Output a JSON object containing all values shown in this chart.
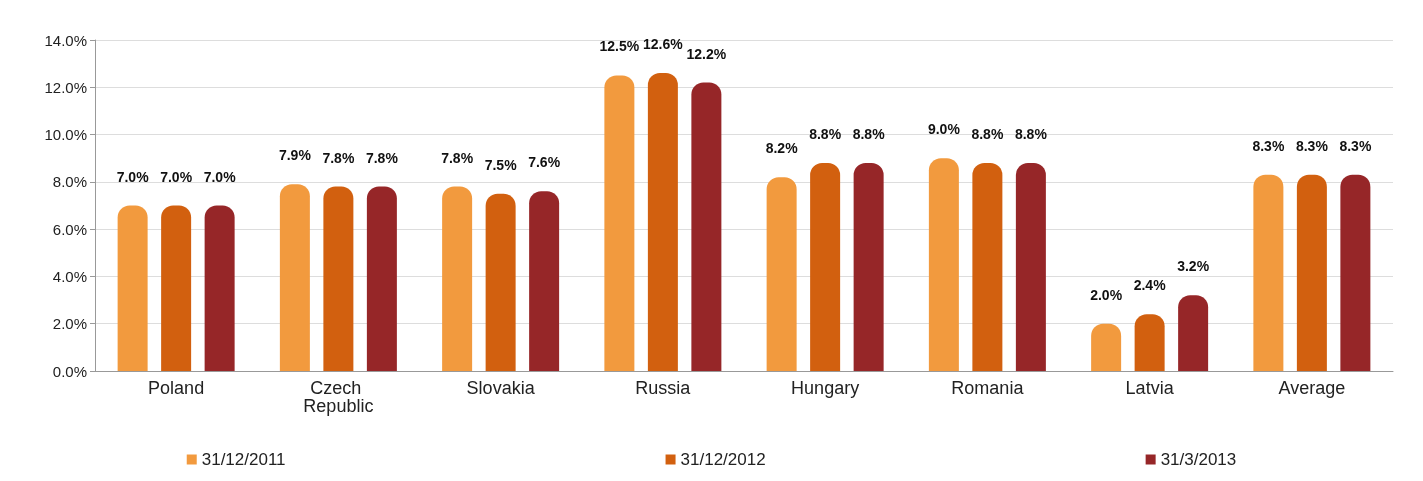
{
  "chart_data": {
    "type": "bar",
    "categories": [
      "Poland",
      "Czech Republic",
      "Slovakia",
      "Russia",
      "Hungary",
      "Romania",
      "Latvia",
      "Average"
    ],
    "series": [
      {
        "name": "31/12/2011",
        "color": "#f29a3e",
        "values": [
          7.0,
          7.9,
          7.8,
          12.5,
          8.2,
          9.0,
          2.0,
          8.3
        ],
        "value_labels": [
          "7.0%",
          "7.9%",
          "7.8%",
          "12.5%",
          "8.2%",
          "9.0%",
          "2.0%",
          "8.3%"
        ]
      },
      {
        "name": "31/12/2012",
        "color": "#d2600f",
        "values": [
          7.0,
          7.8,
          7.5,
          12.6,
          8.8,
          8.8,
          2.4,
          8.3
        ],
        "value_labels": [
          "7.0%",
          "7.8%",
          "7.5%",
          "12.6%",
          "8.8%",
          "8.8%",
          "2.4%",
          "8.3%"
        ]
      },
      {
        "name": "31/3/2013",
        "color": "#962628",
        "values": [
          7.0,
          7.8,
          7.6,
          12.2,
          8.8,
          8.8,
          3.2,
          8.3
        ],
        "value_labels": [
          "7.0%",
          "7.8%",
          "7.6%",
          "12.2%",
          "8.8%",
          "8.8%",
          "3.2%",
          "8.3%"
        ]
      }
    ],
    "ylim": [
      0,
      14
    ],
    "yticks": [
      {
        "value": 0,
        "label": "0.0%"
      },
      {
        "value": 2,
        "label": "2.0%"
      },
      {
        "value": 4,
        "label": "4.0%"
      },
      {
        "value": 6,
        "label": "6.0%"
      },
      {
        "value": 8,
        "label": "8.0%"
      },
      {
        "value": 10,
        "label": "10.0%"
      },
      {
        "value": 12,
        "label": "12.0%"
      },
      {
        "value": 14,
        "label": "14.0%"
      }
    ],
    "grid": "y",
    "legend": "bottom"
  }
}
